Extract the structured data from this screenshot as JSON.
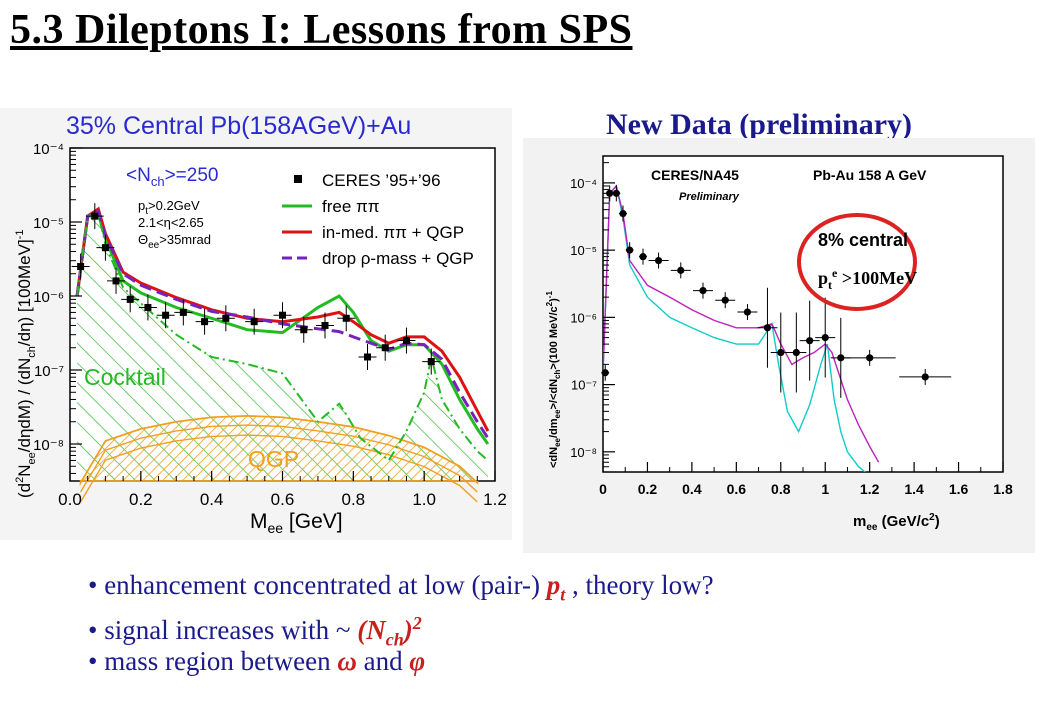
{
  "page": {
    "title": "5.3 Dileptons I: Lessons from SPS ",
    "new_data_label": "New Data (preliminary)",
    "bullets": [
      {
        "text": "• enhancement concentrated at low (pair-) ",
        "emph": "p",
        "sub": "t",
        "tail": " , theory low?"
      },
      {
        "text": "• signal increases with ~ ",
        "emph": "(N",
        "sub": "ch",
        "emph2": ")",
        "sup": "2"
      },
      {
        "text": "• mass region between ",
        "sym1": "ω",
        "mid": " and ",
        "sym2": "φ"
      }
    ]
  },
  "chart_data": [
    {
      "type": "line",
      "title": "35% Central Pb(158AGeV)+Au",
      "xlabel": "M_ee [GeV]",
      "ylabel": "(d²N_ee/dηdM) / (dN_ch/dη)  [100MeV]⁻¹",
      "xlim": [
        0.0,
        1.2
      ],
      "ylim_log10": [
        -8.5,
        -4.0
      ],
      "yscale": "log",
      "x_ticks": [
        "0.0",
        "0.2",
        "0.4",
        "0.6",
        "0.8",
        "1.0",
        "1.2"
      ],
      "y_ticks": [
        "10⁻⁸",
        "10⁻⁷",
        "10⁻⁶",
        "10⁻⁵",
        "10⁻⁴"
      ],
      "annotations": [
        "<N_ch>=250",
        "p_t>0.2GeV",
        "2.1<η<2.65",
        "Θ_ee>35mrad",
        "Cocktail",
        "QGP"
      ],
      "legend": [
        "CERES  ’95+’96",
        "free  ππ",
        "in-med.  ππ + QGP",
        "drop ρ-mass + QGP"
      ],
      "legend_placement": "top-right",
      "series": [
        {
          "name": "CERES  ’95+’96",
          "type": "scatter",
          "color": "#000000",
          "x": [
            0.03,
            0.07,
            0.1,
            0.13,
            0.17,
            0.22,
            0.27,
            0.32,
            0.38,
            0.44,
            0.52,
            0.6,
            0.66,
            0.72,
            0.78,
            0.84,
            0.89,
            0.95,
            1.02
          ],
          "y": [
            2.5e-06,
            1.2e-05,
            4.5e-06,
            1.6e-06,
            9e-07,
            7e-07,
            5.5e-07,
            6e-07,
            4.5e-07,
            5e-07,
            4.5e-07,
            5.5e-07,
            3.5e-07,
            4e-07,
            5e-07,
            1.5e-07,
            2e-07,
            2.5e-07,
            1.3e-07
          ]
        },
        {
          "name": "free  ππ",
          "color": "#22bb22",
          "x": [
            0.02,
            0.05,
            0.08,
            0.1,
            0.15,
            0.2,
            0.3,
            0.4,
            0.5,
            0.6,
            0.7,
            0.76,
            0.8,
            0.85,
            0.9,
            0.95,
            1.0,
            1.05,
            1.1,
            1.15,
            1.18
          ],
          "y": [
            1e-06,
            1.2e-05,
            1.3e-05,
            6e-06,
            1.6e-06,
            1.1e-06,
            7e-07,
            5e-07,
            3.5e-07,
            3.2e-07,
            7e-07,
            1e-06,
            6e-07,
            2.5e-07,
            1.8e-07,
            2.2e-07,
            2.2e-07,
            1.2e-07,
            4e-08,
            1.6e-08,
            1e-08
          ]
        },
        {
          "name": "in-med.  ππ + QGP",
          "color": "#dd1111",
          "x": [
            0.02,
            0.05,
            0.08,
            0.1,
            0.15,
            0.2,
            0.3,
            0.4,
            0.5,
            0.6,
            0.7,
            0.76,
            0.8,
            0.85,
            0.9,
            0.95,
            1.0,
            1.05,
            1.1,
            1.15,
            1.18
          ],
          "y": [
            1e-06,
            1.2e-05,
            1.5e-05,
            7e-06,
            2.1e-06,
            1.5e-06,
            9.5e-07,
            6.5e-07,
            5e-07,
            4.5e-07,
            5.2e-07,
            6e-07,
            4.5e-07,
            3e-07,
            2.3e-07,
            2.8e-07,
            2.8e-07,
            1.8e-07,
            8e-08,
            2.8e-08,
            1.5e-08
          ]
        },
        {
          "name": "drop ρ-mass + QGP",
          "color": "#7722bb",
          "dashed": true,
          "x": [
            0.02,
            0.05,
            0.08,
            0.1,
            0.15,
            0.2,
            0.3,
            0.4,
            0.5,
            0.6,
            0.7,
            0.76,
            0.8,
            0.85,
            0.9,
            0.95,
            1.0,
            1.05,
            1.1,
            1.15,
            1.18
          ],
          "y": [
            1e-06,
            1.2e-05,
            1.4e-05,
            6.5e-06,
            2e-06,
            1.4e-06,
            9e-07,
            6.2e-07,
            5.2e-07,
            4.2e-07,
            3.6e-07,
            3.3e-07,
            2.8e-07,
            2.3e-07,
            1.9e-07,
            2.3e-07,
            2.2e-07,
            1.4e-07,
            5e-08,
            2e-08,
            1.2e-08
          ]
        },
        {
          "name": "Cocktail",
          "color": "#22bb22",
          "dash_dot": true,
          "x": [
            0.02,
            0.05,
            0.08,
            0.1,
            0.15,
            0.2,
            0.3,
            0.4,
            0.5,
            0.6,
            0.7,
            0.76,
            0.78,
            0.82,
            0.9,
            0.95,
            1.0,
            1.02,
            1.05,
            1.1,
            1.15,
            1.18
          ],
          "y": [
            1e-06,
            1.2e-05,
            1.3e-05,
            5e-06,
            1.3e-06,
            8e-07,
            3e-07,
            1.5e-07,
            1.2e-07,
            9e-08,
            2e-08,
            3.5e-08,
            2.5e-08,
            1.2e-08,
            6e-09,
            1.5e-08,
            5e-08,
            1.5e-07,
            4e-08,
            1.6e-08,
            8e-09,
            6e-09
          ]
        }
      ]
    },
    {
      "type": "line",
      "title": "CERES/NA45",
      "subtitle": "Preliminary",
      "label_right": "Pb-Au 158 A GeV",
      "xlabel": "m_ee (GeV/c²)",
      "ylabel": "<dN_ee/dm_ee>/<dN_ch>(100 MeV/c²)⁻¹",
      "xlim": [
        0,
        1.8
      ],
      "ylim_log10": [
        -8.3,
        -3.6
      ],
      "yscale": "log",
      "x_ticks": [
        "0",
        "0.2",
        "0.4",
        "0.6",
        "0.8",
        "1",
        "1.2",
        "1.4",
        "1.6",
        "1.8"
      ],
      "y_ticks": [
        "10⁻⁸",
        "10⁻⁷",
        "10⁻⁶",
        "10⁻⁵",
        "10⁻⁴"
      ],
      "annotation": [
        "8% central",
        "p",
        "t",
        "e",
        " >100MeV"
      ],
      "circle_color": "#dd2222",
      "series": [
        {
          "name": "data",
          "type": "scatter",
          "color": "#000000",
          "x": [
            0.01,
            0.03,
            0.06,
            0.09,
            0.12,
            0.18,
            0.25,
            0.35,
            0.45,
            0.55,
            0.65,
            0.74,
            0.8,
            0.87,
            0.93,
            1.0,
            1.07,
            1.2,
            1.45
          ],
          "y": [
            1.5e-07,
            7e-05,
            7e-05,
            3.5e-05,
            1e-05,
            8e-06,
            7e-06,
            5e-06,
            2.5e-06,
            1.8e-06,
            1.2e-06,
            7e-07,
            3e-07,
            3e-07,
            4.5e-07,
            5e-07,
            2.5e-07,
            2.5e-07,
            1.3e-07
          ]
        },
        {
          "name": "cyan",
          "color": "#11cccc",
          "x": [
            0.0,
            0.03,
            0.06,
            0.09,
            0.12,
            0.2,
            0.3,
            0.4,
            0.5,
            0.6,
            0.7,
            0.76,
            0.79,
            0.83,
            0.88,
            0.93,
            0.98,
            1.01,
            1.04,
            1.07,
            1.1,
            1.15,
            1.18
          ],
          "y": [
            1.5e-07,
            7e-05,
            9e-05,
            3e-05,
            6e-06,
            2e-06,
            1e-06,
            7e-07,
            5e-07,
            4e-07,
            4e-07,
            8e-07,
            2e-07,
            4e-08,
            2e-08,
            5e-08,
            2e-07,
            4e-07,
            6e-08,
            2e-08,
            1e-08,
            6e-09,
            5e-09
          ]
        },
        {
          "name": "magenta",
          "color": "#bb22bb",
          "x": [
            0.0,
            0.03,
            0.06,
            0.09,
            0.12,
            0.2,
            0.3,
            0.4,
            0.5,
            0.6,
            0.7,
            0.76,
            0.8,
            0.85,
            0.9,
            0.95,
            1.0,
            1.03,
            1.06,
            1.1,
            1.15,
            1.2,
            1.24
          ],
          "y": [
            1.5e-07,
            7e-05,
            9e-05,
            3.5e-05,
            7e-06,
            3e-06,
            2e-06,
            1.3e-06,
            9e-07,
            7e-07,
            7e-07,
            8e-07,
            4e-07,
            2e-07,
            2.5e-07,
            3e-07,
            4e-07,
            3e-07,
            1.5e-07,
            6e-08,
            2.5e-08,
            1.2e-08,
            7e-09
          ]
        }
      ]
    }
  ]
}
